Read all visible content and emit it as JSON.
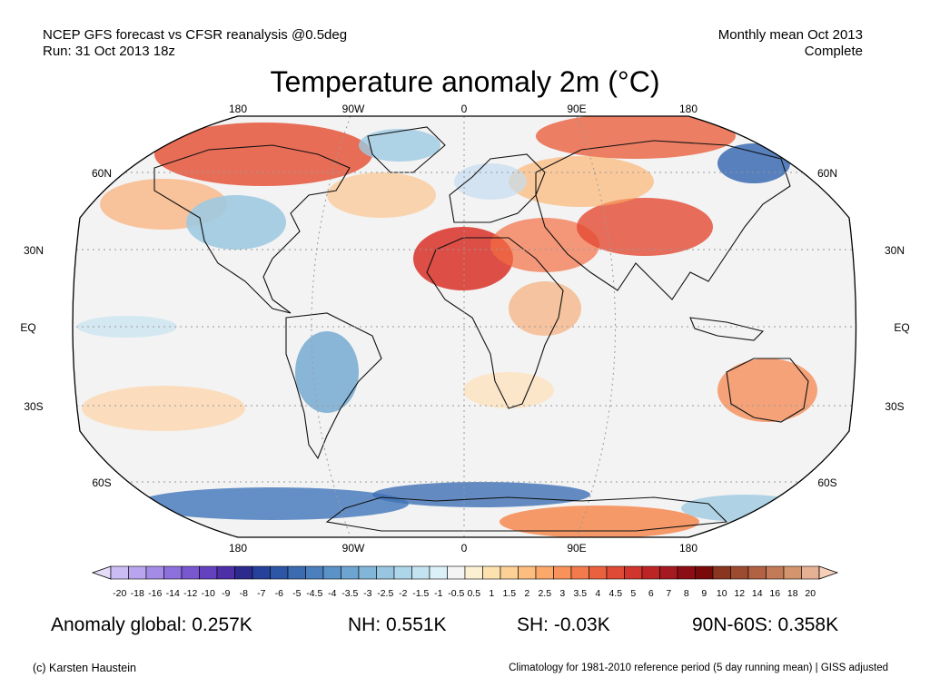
{
  "header": {
    "line1_left": "NCEP GFS forecast vs CFSR reanalysis @0.5deg",
    "line2_left": "Run: 31 Oct 2013 18z",
    "line1_right": "Monthly mean Oct 2013",
    "line2_right": "Complete"
  },
  "title": "Temperature anomaly 2m (°C)",
  "map": {
    "projection": "Robinson",
    "lon_labels": [
      "180",
      "90W",
      "0",
      "90E",
      "180"
    ],
    "lat_labels_left": [
      "60N",
      "30N",
      "EQ",
      "30S",
      "60S"
    ],
    "lat_labels_right": [
      "60N",
      "30N",
      "EQ",
      "30S",
      "60S"
    ],
    "colors": {
      "land_border": "#000000",
      "ocean_neutral": "#f2f2f2",
      "warm": "#d7301f",
      "cold": "#2166ac"
    }
  },
  "colorbar": {
    "labels": [
      "-20",
      "-18",
      "-16",
      "-14",
      "-12",
      "-10",
      "-9",
      "-8",
      "-7",
      "-6",
      "-5",
      "-4.5",
      "-4",
      "-3.5",
      "-3",
      "-2.5",
      "-2",
      "-1.5",
      "-1",
      "-0.5",
      "0.5",
      "1",
      "1.5",
      "2",
      "2.5",
      "3",
      "3.5",
      "4",
      "4.5",
      "5",
      "6",
      "7",
      "8",
      "9",
      "10",
      "12",
      "14",
      "16",
      "18",
      "20"
    ],
    "colors": [
      "#cbbdf3",
      "#b9a5ee",
      "#a48ce6",
      "#8e70dc",
      "#7857cf",
      "#6441be",
      "#4d2fa8",
      "#2c2a8c",
      "#26419b",
      "#2e56a6",
      "#3d6bb2",
      "#4b7fbd",
      "#5b92c7",
      "#6da4d0",
      "#82b6d9",
      "#98c6e1",
      "#aed6ea",
      "#c4e3f1",
      "#dcf0f8",
      "#f4f4f4",
      "#fdf0d2",
      "#fde2b0",
      "#fdd095",
      "#fcbd7e",
      "#fba96a",
      "#f8925a",
      "#f27a4c",
      "#ea6140",
      "#de4a35",
      "#d0362d",
      "#bc2526",
      "#a51a20",
      "#8c0d16",
      "#7a0a0a",
      "#8a3520",
      "#9d4b30",
      "#b06242",
      "#c27a57",
      "#d4946d",
      "#e6b095"
    ]
  },
  "stats": {
    "global": "Anomaly global: 0.257K",
    "nh": "NH: 0.551K",
    "sh": "SH: -0.03K",
    "polar": "90N-60S: 0.358K"
  },
  "credit_left": "(c) Karsten Haustein",
  "credit_right": "Climatology for 1981-2010 reference period (5 day running mean) | GISS adjusted"
}
